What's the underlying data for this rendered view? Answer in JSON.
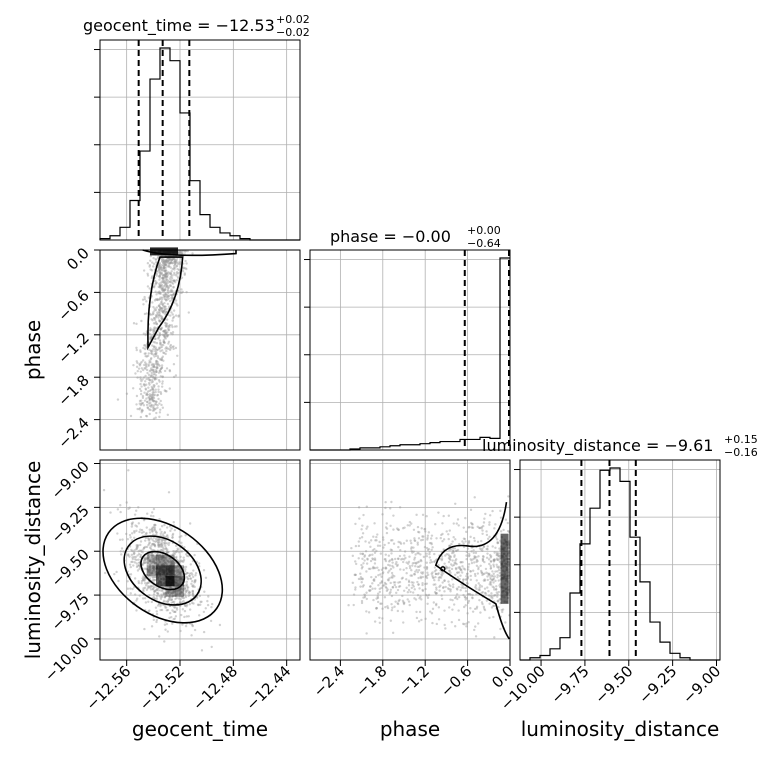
{
  "chart_data": {
    "type": "corner",
    "parameters": [
      "geocent_time",
      "phase",
      "luminosity_distance"
    ],
    "titles": [
      {
        "param": "geocent_time",
        "text": "geocent_time = −12.53",
        "sup": "+0.02",
        "sub": "−0.02"
      },
      {
        "param": "phase",
        "text": "phase = −0.00",
        "sup": "+0.00",
        "sub": "−0.64"
      },
      {
        "param": "luminosity_distance",
        "text": "luminosity_distance = −9.61",
        "sup": "+0.15",
        "sub": "−0.16"
      }
    ],
    "axis_labels": {
      "x": [
        "geocent_time",
        "phase",
        "luminosity_distance"
      ],
      "y": [
        "phase",
        "luminosity_distance"
      ]
    },
    "ranges": {
      "geocent_time": [
        -12.58,
        -12.43
      ],
      "phase": [
        -2.83,
        0.0
      ],
      "luminosity_distance": [
        -10.12,
        -8.98
      ]
    },
    "ticks": {
      "geocent_time": [
        "−12.56",
        "−12.52",
        "−12.48",
        "−12.44"
      ],
      "geocent_time_values": [
        -12.56,
        -12.52,
        -12.48,
        -12.44
      ],
      "phase": [
        "−2.4",
        "−1.8",
        "−1.2",
        "−0.6",
        "0.0"
      ],
      "phase_values": [
        -2.4,
        -1.8,
        -1.2,
        -0.6,
        0.0
      ],
      "luminosity_distance_x": [
        "−10.00",
        "−9.75",
        "−9.50",
        "−9.25",
        "−9.00"
      ],
      "luminosity_distance_y": [
        "−9.00",
        "−9.25",
        "−9.50",
        "−9.75",
        "−10.00"
      ],
      "luminosity_distance_values": [
        -10.0,
        -9.75,
        -9.5,
        -9.25,
        -9.0
      ]
    },
    "quantiles": {
      "geocent_time": [
        -12.551,
        -12.533,
        -12.513
      ],
      "phase": [
        -0.64,
        -0.001,
        0.0
      ],
      "luminosity_distance": [
        -9.77,
        -9.61,
        -9.46
      ]
    },
    "histograms": {
      "geocent_time": {
        "edges": [
          -12.58,
          -12.5725,
          -12.565,
          -12.5575,
          -12.55,
          -12.5425,
          -12.535,
          -12.5275,
          -12.52,
          -12.5125,
          -12.505,
          -12.4975,
          -12.49,
          -12.4825,
          -12.475,
          -12.4675,
          -12.46,
          -12.4525,
          -12.445,
          -12.4375,
          -12.43
        ],
        "counts": [
          1,
          3,
          9,
          28,
          63,
          114,
          136,
          127,
          90,
          42,
          18,
          9,
          5,
          3,
          1,
          0,
          0,
          0,
          0,
          0
        ]
      },
      "phase": {
        "edges": [
          -2.83,
          -2.6885,
          -2.547,
          -2.4055,
          -2.264,
          -2.1225,
          -1.981,
          -1.8395,
          -1.698,
          -1.5565,
          -1.415,
          -1.2735,
          -1.132,
          -0.9905,
          -0.849,
          -0.7075,
          -0.566,
          -0.4245,
          -0.283,
          -0.1415,
          0.0
        ],
        "counts": [
          0,
          0,
          0,
          0,
          1,
          2,
          2,
          3,
          4,
          5,
          5,
          6,
          7,
          8,
          8,
          10,
          10,
          12,
          11,
          182
        ]
      },
      "luminosity_distance": {
        "edges": [
          -10.12,
          -10.063,
          -10.006,
          -9.949,
          -9.892,
          -9.835,
          -9.778,
          -9.721,
          -9.664,
          -9.607,
          -9.55,
          -9.493,
          -9.436,
          -9.379,
          -9.322,
          -9.265,
          -9.208,
          -9.151,
          -9.094,
          -9.037,
          -8.98
        ],
        "counts": [
          0,
          1,
          2,
          5,
          10,
          30,
          52,
          68,
          85,
          86,
          80,
          55,
          35,
          17,
          8,
          3,
          1,
          0,
          0,
          0
        ]
      }
    },
    "grid": true
  }
}
